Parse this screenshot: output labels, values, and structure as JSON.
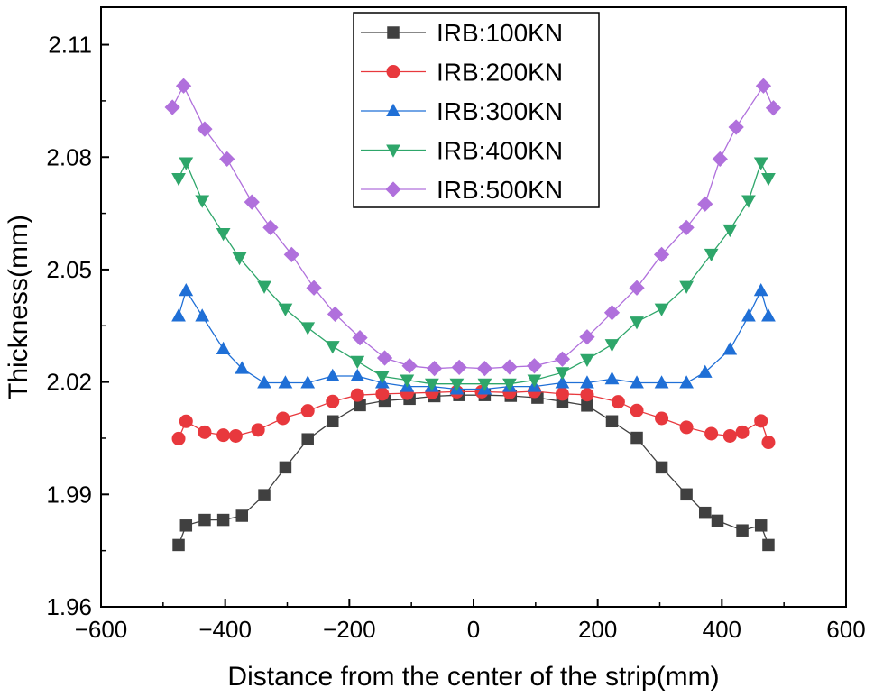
{
  "chart_data": {
    "type": "line",
    "title": "",
    "xlabel": "Distance from the center of the strip(mm)",
    "ylabel": "Thickness(mm)",
    "xlim": [
      -600,
      600
    ],
    "ylim": [
      1.96,
      2.12
    ],
    "xticks": [
      -600,
      -400,
      -200,
      0,
      200,
      400,
      600
    ],
    "xtick_labels": [
      "−600",
      "−400",
      "−200",
      "0",
      "200",
      "400",
      "600"
    ],
    "yticks": [
      1.96,
      1.99,
      2.02,
      2.05,
      2.08,
      2.11
    ],
    "ytick_labels": [
      "1.96",
      "1.99",
      "2.02",
      "2.05",
      "2.08",
      "2.11"
    ],
    "grid": false,
    "legend_position": "top-center",
    "series": [
      {
        "name": "IRB:100KN",
        "color": "#404040",
        "marker": "square",
        "x": [
          -475,
          -463,
          -433,
          -403,
          -373,
          -337,
          -303,
          -267,
          -227,
          -183,
          -143,
          -103,
          -63,
          -23,
          18,
          60,
          103,
          143,
          183,
          223,
          263,
          303,
          343,
          373,
          393,
          433,
          463,
          475
        ],
        "values": [
          1.9765,
          1.9817,
          1.9832,
          1.9832,
          1.9843,
          1.9898,
          1.9972,
          2.0047,
          2.0095,
          2.0138,
          2.015,
          2.0155,
          2.0162,
          2.0165,
          2.0165,
          2.0163,
          2.0158,
          2.0148,
          2.0137,
          2.0095,
          2.0051,
          1.9972,
          1.99,
          1.9851,
          1.983,
          1.9804,
          1.9817,
          1.9765
        ]
      },
      {
        "name": "IRB:200KN",
        "color": "#e8383d",
        "marker": "circle",
        "x": [
          -475,
          -463,
          -433,
          -403,
          -383,
          -347,
          -307,
          -267,
          -227,
          -187,
          -147,
          -107,
          -67,
          -27,
          13,
          58,
          98,
          143,
          183,
          233,
          263,
          303,
          343,
          383,
          413,
          433,
          463,
          475
        ],
        "values": [
          2.0049,
          2.0095,
          2.0066,
          2.0058,
          2.0056,
          2.0072,
          2.0103,
          2.0123,
          2.0148,
          2.0165,
          2.0168,
          2.017,
          2.0172,
          2.0174,
          2.0174,
          2.0172,
          2.0175,
          2.0168,
          2.0166,
          2.0147,
          2.0124,
          2.0103,
          2.0079,
          2.0062,
          2.0056,
          2.0066,
          2.0096,
          2.0039
        ]
      },
      {
        "name": "IRB:300KN",
        "color": "#1f6fd6",
        "marker": "triangle-up",
        "x": [
          -475,
          -463,
          -437,
          -403,
          -373,
          -337,
          -303,
          -267,
          -227,
          -187,
          -147,
          -107,
          -67,
          -27,
          18,
          58,
          98,
          143,
          183,
          223,
          263,
          303,
          343,
          373,
          413,
          443,
          463,
          475
        ],
        "values": [
          2.0376,
          2.0444,
          2.0376,
          2.0288,
          2.0236,
          2.0198,
          2.0198,
          2.0198,
          2.0216,
          2.0216,
          2.0198,
          2.0188,
          2.0188,
          2.0181,
          2.0181,
          2.0188,
          2.0188,
          2.0198,
          2.0198,
          2.0208,
          2.0198,
          2.0198,
          2.0198,
          2.0226,
          2.0287,
          2.0376,
          2.0444,
          2.0376
        ]
      },
      {
        "name": "IRB:400KN",
        "color": "#2ea66a",
        "marker": "triangle-down",
        "x": [
          -475,
          -463,
          -437,
          -403,
          -377,
          -337,
          -303,
          -267,
          -227,
          -187,
          -147,
          -107,
          -67,
          -27,
          18,
          58,
          98,
          143,
          183,
          223,
          263,
          303,
          343,
          383,
          413,
          443,
          463,
          475
        ],
        "values": [
          2.0743,
          2.0785,
          2.0684,
          2.0596,
          2.0531,
          2.0455,
          2.0395,
          2.0345,
          2.0295,
          2.0255,
          2.0215,
          2.0205,
          2.0195,
          2.0195,
          2.0195,
          2.0195,
          2.0205,
          2.0225,
          2.026,
          2.03,
          2.036,
          2.0395,
          2.0455,
          2.0541,
          2.0606,
          2.0684,
          2.0785,
          2.0743
        ]
      },
      {
        "name": "IRB:500KN",
        "color": "#b070dc",
        "marker": "diamond",
        "x": [
          -485,
          -467,
          -433,
          -397,
          -357,
          -327,
          -293,
          -257,
          -223,
          -183,
          -143,
          -103,
          -63,
          -23,
          18,
          58,
          98,
          143,
          183,
          223,
          263,
          303,
          343,
          373,
          397,
          423,
          467,
          483
        ],
        "values": [
          2.0933,
          2.099,
          2.0875,
          2.0795,
          2.068,
          2.0612,
          2.054,
          2.0451,
          2.0381,
          2.0318,
          2.0264,
          2.0243,
          2.0236,
          2.0239,
          2.0236,
          2.024,
          2.0243,
          2.0261,
          2.032,
          2.0385,
          2.0451,
          2.054,
          2.0612,
          2.0675,
          2.0795,
          2.088,
          2.099,
          2.0931
        ]
      }
    ]
  }
}
